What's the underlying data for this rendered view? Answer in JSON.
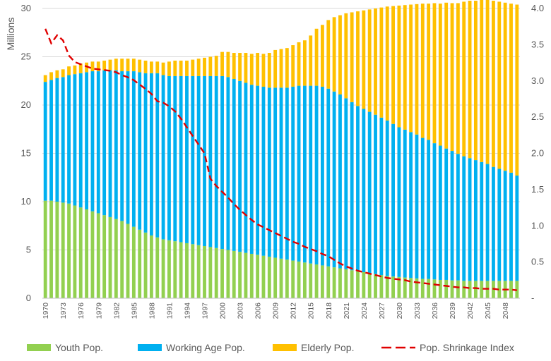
{
  "chart_data": {
    "type": "bar",
    "stacked": true,
    "ylabel": "Millions",
    "ylim": [
      0,
      30
    ],
    "y2lim": [
      0,
      4
    ],
    "yticks": [
      "0",
      "5",
      "10",
      "15",
      "20",
      "25",
      "30"
    ],
    "y2ticks": [
      "-",
      "0.5",
      "1.0",
      "1.5",
      "2.0",
      "2.5",
      "3.0",
      "3.5",
      "4.0"
    ],
    "grid": true,
    "legend_position": "bottom",
    "categories": [
      1970,
      1971,
      1972,
      1973,
      1974,
      1975,
      1976,
      1977,
      1978,
      1979,
      1980,
      1981,
      1982,
      1983,
      1984,
      1985,
      1986,
      1987,
      1988,
      1989,
      1990,
      1991,
      1992,
      1993,
      1994,
      1995,
      1996,
      1997,
      1998,
      1999,
      2000,
      2001,
      2002,
      2003,
      2004,
      2005,
      2006,
      2007,
      2008,
      2009,
      2010,
      2011,
      2012,
      2013,
      2014,
      2015,
      2016,
      2017,
      2018,
      2019,
      2020,
      2021,
      2022,
      2023,
      2024,
      2025,
      2026,
      2027,
      2028,
      2029,
      2030,
      2031,
      2032,
      2033,
      2034,
      2035,
      2036,
      2037,
      2038,
      2039,
      2040,
      2041,
      2042,
      2043,
      2044,
      2045,
      2046,
      2047,
      2048,
      2049,
      2050
    ],
    "x_tick_labels": [
      "1970",
      "1973",
      "1976",
      "1979",
      "1982",
      "1985",
      "1988",
      "1991",
      "1994",
      "1997",
      "2000",
      "2003",
      "2006",
      "2009",
      "2012",
      "2015",
      "2018",
      "2021",
      "2024",
      "2027",
      "2030",
      "2033",
      "2036",
      "2039",
      "2042",
      "2045",
      "2048"
    ],
    "series": [
      {
        "name": "Youth Pop.",
        "color": "#92D050",
        "axis": "left",
        "values": [
          10.1,
          10.1,
          10.0,
          9.9,
          9.8,
          9.6,
          9.4,
          9.2,
          9.0,
          8.8,
          8.6,
          8.4,
          8.2,
          8.0,
          7.7,
          7.4,
          7.1,
          6.8,
          6.5,
          6.3,
          6.1,
          6.0,
          5.9,
          5.8,
          5.7,
          5.6,
          5.5,
          5.4,
          5.3,
          5.2,
          5.1,
          5.0,
          4.9,
          4.8,
          4.7,
          4.6,
          4.5,
          4.4,
          4.3,
          4.2,
          4.1,
          4.0,
          3.9,
          3.8,
          3.7,
          3.6,
          3.5,
          3.4,
          3.3,
          3.2,
          3.1,
          3.0,
          2.9,
          2.8,
          2.7,
          2.6,
          2.5,
          2.4,
          2.3,
          2.25,
          2.2,
          2.15,
          2.1,
          2.05,
          2.0,
          2.0,
          1.95,
          1.9,
          1.9,
          1.85,
          1.85,
          1.8,
          1.8,
          1.8,
          1.8,
          1.8,
          1.8,
          1.8,
          1.8,
          1.8,
          1.8
        ]
      },
      {
        "name": "Working Age Pop.",
        "color": "#00B0F0",
        "axis": "left",
        "values": [
          12.3,
          12.5,
          12.8,
          13.0,
          13.3,
          13.6,
          13.9,
          14.2,
          14.5,
          14.7,
          15.0,
          15.2,
          15.4,
          15.5,
          15.8,
          16.1,
          16.3,
          16.5,
          16.8,
          17.0,
          17.0,
          17.0,
          17.1,
          17.2,
          17.3,
          17.4,
          17.5,
          17.6,
          17.7,
          17.8,
          17.9,
          17.9,
          17.8,
          17.7,
          17.6,
          17.5,
          17.5,
          17.5,
          17.5,
          17.6,
          17.7,
          17.8,
          18.0,
          18.2,
          18.3,
          18.4,
          18.5,
          18.5,
          18.4,
          18.2,
          18.0,
          17.7,
          17.4,
          17.1,
          16.9,
          16.7,
          16.5,
          16.3,
          16.1,
          15.8,
          15.5,
          15.3,
          15.1,
          14.9,
          14.6,
          14.4,
          14.1,
          13.9,
          13.6,
          13.4,
          13.1,
          12.9,
          12.7,
          12.5,
          12.3,
          12.1,
          11.8,
          11.6,
          11.4,
          11.2,
          10.9
        ]
      },
      {
        "name": "Elderly Pop.",
        "color": "#FFC000",
        "axis": "left",
        "values": [
          0.7,
          0.8,
          0.8,
          0.8,
          0.9,
          0.9,
          1.0,
          1.0,
          1.0,
          1.0,
          1.0,
          1.1,
          1.2,
          1.3,
          1.3,
          1.3,
          1.3,
          1.3,
          1.2,
          1.2,
          1.3,
          1.5,
          1.6,
          1.6,
          1.6,
          1.7,
          1.8,
          1.9,
          2.0,
          2.1,
          2.5,
          2.6,
          2.7,
          2.9,
          3.1,
          3.2,
          3.4,
          3.4,
          3.6,
          3.9,
          4.0,
          4.1,
          4.3,
          4.5,
          4.7,
          5.2,
          5.9,
          6.4,
          7.1,
          7.7,
          8.2,
          8.8,
          9.3,
          9.8,
          10.2,
          10.6,
          11.0,
          11.4,
          11.8,
          12.2,
          12.6,
          12.9,
          13.2,
          13.5,
          13.9,
          14.1,
          14.5,
          14.7,
          15.1,
          15.3,
          15.6,
          16.0,
          16.3,
          16.5,
          16.8,
          17.0,
          17.2,
          17.3,
          17.4,
          17.5,
          17.7
        ]
      },
      {
        "name": "Pop. Shrinkage Index",
        "color": "#E00000",
        "type": "line",
        "dashed": true,
        "axis": "right",
        "values": [
          3.72,
          3.52,
          3.63,
          3.56,
          3.35,
          3.26,
          3.23,
          3.2,
          3.17,
          3.16,
          3.15,
          3.14,
          3.12,
          3.08,
          3.05,
          3.01,
          2.95,
          2.89,
          2.82,
          2.72,
          2.7,
          2.65,
          2.58,
          2.48,
          2.36,
          2.24,
          2.12,
          2.0,
          1.65,
          1.55,
          1.47,
          1.39,
          1.3,
          1.22,
          1.15,
          1.08,
          1.02,
          0.98,
          0.94,
          0.9,
          0.86,
          0.82,
          0.78,
          0.75,
          0.71,
          0.68,
          0.65,
          0.61,
          0.58,
          0.53,
          0.48,
          0.44,
          0.41,
          0.38,
          0.36,
          0.34,
          0.32,
          0.3,
          0.28,
          0.27,
          0.26,
          0.25,
          0.23,
          0.22,
          0.21,
          0.2,
          0.19,
          0.18,
          0.17,
          0.16,
          0.15,
          0.15,
          0.14,
          0.14,
          0.13,
          0.13,
          0.13,
          0.12,
          0.12,
          0.12,
          0.11
        ]
      }
    ]
  }
}
